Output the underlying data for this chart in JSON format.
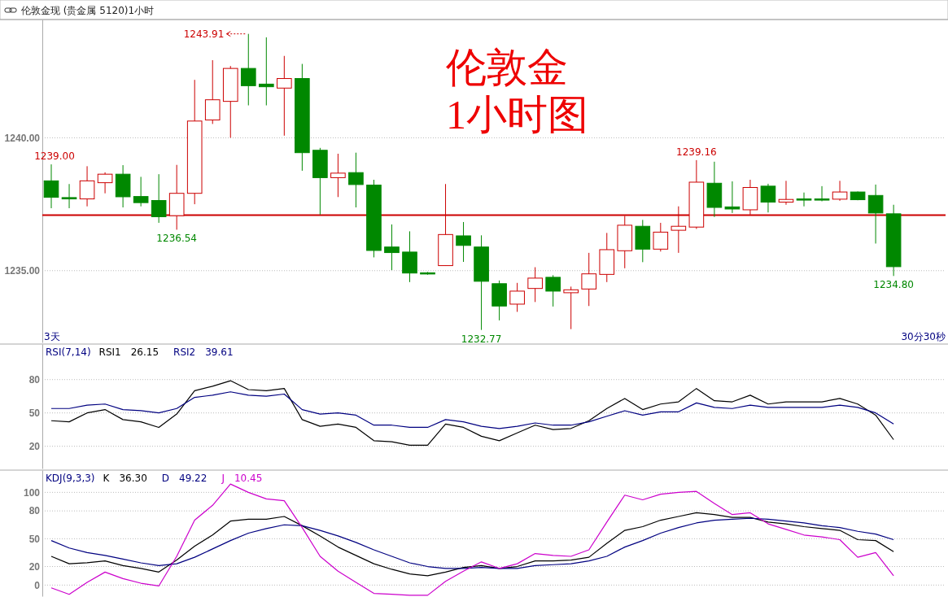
{
  "chart_data": [
    {
      "type": "candlestick",
      "title": "伦敦金现 (贵金属 5120)1小时",
      "categories": [
        null,
        null,
        null,
        null,
        null,
        null,
        null,
        null,
        null,
        null,
        null,
        null,
        null,
        null,
        null,
        null,
        null,
        null,
        null,
        null,
        null,
        null,
        null,
        null,
        null,
        null,
        null,
        null,
        null,
        null,
        null,
        null,
        null,
        null,
        null,
        null,
        null,
        null,
        null,
        null,
        null,
        null,
        null,
        null,
        null,
        null,
        null,
        null
      ],
      "ohlc": [
        [
          1238.38,
          1239.0,
          1237.35,
          1237.76
        ],
        [
          1237.75,
          1238.26,
          1237.35,
          1237.7
        ],
        [
          1237.7,
          1238.93,
          1237.42,
          1238.38
        ],
        [
          1238.31,
          1238.7,
          1237.91,
          1238.63
        ],
        [
          1238.63,
          1238.97,
          1237.38,
          1237.78
        ],
        [
          1237.79,
          1238.53,
          1237.42,
          1237.56
        ],
        [
          1237.64,
          1238.63,
          1236.8,
          1237.03
        ],
        [
          1237.07,
          1238.98,
          1236.54,
          1237.91
        ],
        [
          1237.91,
          1242.18,
          1237.5,
          1240.63
        ],
        [
          1240.67,
          1242.92,
          1240.52,
          1241.43
        ],
        [
          1241.37,
          1242.7,
          1240.0,
          1242.61
        ],
        [
          1242.61,
          1243.91,
          1241.22,
          1241.96
        ],
        [
          1242.02,
          1243.78,
          1241.22,
          1241.92
        ],
        [
          1241.87,
          1243.08,
          1240.08,
          1242.23
        ],
        [
          1242.23,
          1242.78,
          1238.76,
          1239.44
        ],
        [
          1239.53,
          1239.62,
          1237.11,
          1238.5
        ],
        [
          1238.5,
          1239.4,
          1237.77,
          1238.67
        ],
        [
          1238.69,
          1239.44,
          1237.38,
          1238.24
        ],
        [
          1238.22,
          1238.42,
          1235.5,
          1235.76
        ],
        [
          1235.89,
          1236.74,
          1235.02,
          1235.68
        ],
        [
          1235.7,
          1236.48,
          1234.57,
          1234.91
        ],
        [
          1234.92,
          1234.95,
          1234.85,
          1234.88
        ],
        [
          1235.19,
          1238.26,
          1235.19,
          1236.36
        ],
        [
          1236.31,
          1236.83,
          1235.33,
          1235.95
        ],
        [
          1235.89,
          1236.33,
          1232.77,
          1234.6
        ],
        [
          1234.51,
          1234.63,
          1233.13,
          1233.67
        ],
        [
          1233.74,
          1234.54,
          1233.45,
          1234.23
        ],
        [
          1234.33,
          1235.13,
          1233.82,
          1234.72
        ],
        [
          1234.75,
          1234.83,
          1233.65,
          1234.23
        ],
        [
          1234.17,
          1234.4,
          1232.8,
          1234.28
        ],
        [
          1234.31,
          1235.67,
          1233.67,
          1234.88
        ],
        [
          1234.86,
          1236.42,
          1234.57,
          1235.79
        ],
        [
          1235.75,
          1237.06,
          1235.09,
          1236.71
        ],
        [
          1236.67,
          1236.91,
          1235.32,
          1235.81
        ],
        [
          1235.81,
          1236.8,
          1235.72,
          1236.45
        ],
        [
          1236.52,
          1237.42,
          1235.67,
          1236.67
        ],
        [
          1236.64,
          1239.16,
          1236.57,
          1238.33
        ],
        [
          1238.29,
          1239.1,
          1237.02,
          1237.38
        ],
        [
          1237.4,
          1238.36,
          1237.17,
          1237.32
        ],
        [
          1237.29,
          1238.42,
          1237.11,
          1238.13
        ],
        [
          1238.18,
          1238.27,
          1237.19,
          1237.58
        ],
        [
          1237.58,
          1238.38,
          1237.48,
          1237.68
        ],
        [
          1237.7,
          1237.94,
          1237.42,
          1237.67
        ],
        [
          1237.7,
          1238.18,
          1237.61,
          1237.67
        ],
        [
          1237.69,
          1238.38,
          1237.63,
          1237.96
        ],
        [
          1237.96,
          1237.98,
          1237.65,
          1237.67
        ],
        [
          1237.83,
          1238.24,
          1236.02,
          1237.17
        ],
        [
          1237.14,
          1237.48,
          1234.8,
          1235.15
        ]
      ],
      "colors": [
        "#008800",
        "#008800",
        "#cc0000",
        "#cc0000",
        "#008800",
        "#008800",
        "#008800",
        "#cc0000",
        "#cc0000",
        "#cc0000",
        "#cc0000",
        "#008800",
        "#008800",
        "#cc0000",
        "#008800",
        "#008800",
        "#cc0000",
        "#008800",
        "#008800",
        "#008800",
        "#008800",
        "#008800",
        "#cc0000",
        "#008800",
        "#008800",
        "#008800",
        "#cc0000",
        "#cc0000",
        "#008800",
        "#cc0000",
        "#cc0000",
        "#cc0000",
        "#cc0000",
        "#008800",
        "#cc0000",
        "#cc0000",
        "#cc0000",
        "#008800",
        "#008800",
        "#cc0000",
        "#008800",
        "#cc0000",
        "#008800",
        "#008800",
        "#cc0000",
        "#008800",
        "#008800",
        "#008800"
      ],
      "ylim": [
        1232.3,
        1244.45
      ],
      "yticks": [
        {
          "value": 1235,
          "label": "1235.00"
        },
        {
          "value": 1240,
          "label": "1240.00"
        }
      ],
      "grid": "y",
      "ref_lines": [
        {
          "axis": "y",
          "value": 1237.09,
          "color": "#cc0000"
        }
      ],
      "annotations": [
        "伦敦金",
        "1小时图",
        "3天",
        "30分30秒",
        "1243.91",
        {
          "text": "1239.00",
          "y": 1239.0
        },
        {
          "text": "1236.54",
          "y": 1236.54
        },
        {
          "text": "1232.77",
          "y": 1232.77
        },
        {
          "text": "1239.16",
          "y": 1239.16
        },
        {
          "text": "1234.80",
          "y": 1234.8
        }
      ]
    },
    {
      "type": "line",
      "title": "RSI(7,14)",
      "categories": [
        null,
        null,
        null,
        null,
        null,
        null,
        null,
        null,
        null,
        null,
        null,
        null,
        null,
        null,
        null,
        null,
        null,
        null,
        null,
        null,
        null,
        null,
        null,
        null,
        null,
        null,
        null,
        null,
        null,
        null,
        null,
        null,
        null,
        null,
        null,
        null,
        null,
        null,
        null,
        null,
        null,
        null,
        null,
        null,
        null,
        null,
        null,
        null
      ],
      "series": [
        {
          "name": "RSI1",
          "color": "#000000",
          "values": [
            43,
            42,
            50,
            53,
            44,
            42,
            37,
            49,
            70,
            74,
            79,
            71,
            70,
            72,
            44,
            38,
            40,
            37,
            25,
            24,
            21,
            21,
            40,
            37,
            29,
            25,
            32,
            39,
            35,
            36,
            43,
            54,
            63,
            53,
            58,
            60,
            72,
            61,
            60,
            66,
            58,
            60,
            60,
            60,
            63,
            58,
            48,
            26
          ]
        },
        {
          "name": "RSI2",
          "color": "#000080",
          "values": [
            54,
            54,
            57,
            58,
            53,
            52,
            50,
            54,
            64,
            66,
            69,
            66,
            65,
            67,
            53,
            49,
            50,
            48,
            39,
            39,
            37,
            37,
            44,
            42,
            38,
            36,
            38,
            41,
            39,
            39,
            42,
            47,
            52,
            48,
            51,
            51,
            59,
            55,
            54,
            57,
            55,
            55,
            55,
            55,
            57,
            55,
            50,
            40
          ]
        }
      ],
      "ylim": [
        0,
        112
      ],
      "yticks": [
        20,
        50,
        80
      ],
      "grid": "y",
      "legend": "top left",
      "annotations": [
        "26.15",
        "39.61"
      ]
    },
    {
      "type": "line",
      "title": "KDJ(9,3,3)",
      "categories": [
        null,
        null,
        null,
        null,
        null,
        null,
        null,
        null,
        null,
        null,
        null,
        null,
        null,
        null,
        null,
        null,
        null,
        null,
        null,
        null,
        null,
        null,
        null,
        null,
        null,
        null,
        null,
        null,
        null,
        null,
        null,
        null,
        null,
        null,
        null,
        null,
        null,
        null,
        null,
        null,
        null,
        null,
        null,
        null,
        null,
        null,
        null,
        null
      ],
      "series": [
        {
          "name": "K",
          "color": "#000000",
          "values": [
            31,
            23,
            24,
            26,
            21,
            18,
            14,
            27,
            42,
            54,
            69,
            71,
            71,
            74,
            64,
            53,
            41,
            32,
            23,
            17,
            12,
            10,
            14,
            19,
            21,
            18,
            20,
            26,
            26,
            27,
            30,
            45,
            59,
            63,
            70,
            74,
            78,
            76,
            73,
            73,
            68,
            66,
            63,
            61,
            59,
            49,
            48,
            36
          ]
        },
        {
          "name": "D",
          "color": "#000080",
          "values": [
            48,
            40,
            35,
            32,
            28,
            24,
            21,
            23,
            30,
            39,
            48,
            56,
            61,
            65,
            64,
            59,
            53,
            46,
            38,
            31,
            24,
            20,
            18,
            18,
            19,
            18,
            18,
            21,
            22,
            23,
            26,
            31,
            41,
            48,
            56,
            62,
            67,
            70,
            71,
            72,
            71,
            69,
            67,
            64,
            62,
            58,
            55,
            49
          ]
        },
        {
          "name": "J",
          "color": "#cc00cc",
          "values": [
            -3,
            -10,
            3,
            14,
            7,
            2,
            -1,
            31,
            70,
            86,
            109,
            100,
            93,
            91,
            62,
            31,
            15,
            3,
            -9,
            -10,
            -11,
            -11,
            4,
            15,
            25,
            18,
            23,
            34,
            32,
            31,
            38,
            68,
            97,
            92,
            98,
            100,
            101,
            88,
            76,
            78,
            66,
            60,
            54,
            52,
            49,
            30,
            35,
            10
          ]
        }
      ],
      "ylim": [
        -12,
        124
      ],
      "yticks": [
        0,
        20,
        50,
        80,
        100
      ],
      "grid": "y",
      "legend": "top left",
      "annotations": [
        "36.30",
        "49.22",
        "10.45"
      ]
    }
  ]
}
